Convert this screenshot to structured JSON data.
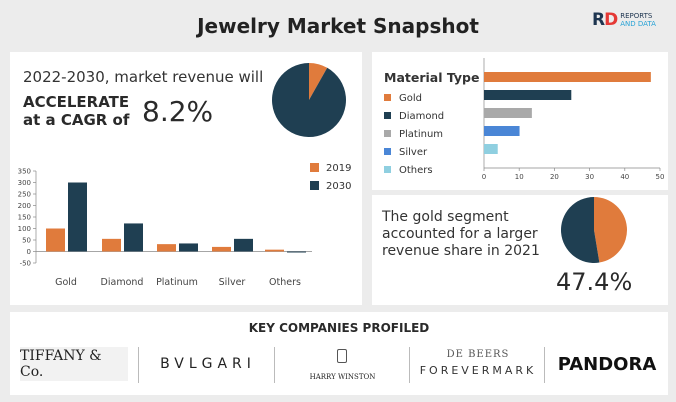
{
  "title": "Jewelry Market Snapshot",
  "logo": {
    "mark": "RD",
    "line1": "REPORTS",
    "line2": "AND DATA"
  },
  "summary": {
    "line1": "2022-2030, market revenue will",
    "line2": "ACCELERATE",
    "line3": "at a CAGR of",
    "cagr": "8.2%"
  },
  "gold_share": {
    "text": "The gold segment accounted for a larger revenue share in 2021",
    "value": "47.4%"
  },
  "companies": {
    "heading": "KEY COMPANIES PROFILED",
    "items": [
      "TIFFANY & Co.",
      "BVLGARI",
      "HARRY WINSTON",
      "DE BEERS",
      "FOREVERMARK",
      "PANDORA"
    ]
  },
  "colors": {
    "orange": "#e07b3c",
    "navy": "#1f3f52",
    "gray": "#a9a9a9",
    "blue": "#4a86d6",
    "lightblue": "#8fcfe0"
  },
  "chart_data": [
    {
      "type": "pie",
      "values": [
        8.2,
        91.8
      ],
      "colors": [
        "#e07b3c",
        "#1f3f52"
      ]
    },
    {
      "type": "bar",
      "categories": [
        "Gold",
        "Diamond",
        "Platinum",
        "Silver",
        "Others"
      ],
      "series": [
        {
          "name": "2019",
          "values": [
            100,
            55,
            32,
            20,
            8
          ]
        },
        {
          "name": "2030",
          "values": [
            300,
            122,
            35,
            55,
            -2
          ]
        }
      ],
      "ylim": [
        -50,
        350
      ],
      "yticks": [
        "350",
        "300",
        "250",
        "200",
        "150",
        "100",
        "50",
        "0",
        "-50"
      ],
      "legend": "top-right"
    },
    {
      "type": "bar",
      "orientation": "horizontal",
      "title": "Material Type",
      "categories": [
        "Gold",
        "Diamond",
        "Platinum",
        "Silver",
        "Others"
      ],
      "values": [
        47.4,
        24.8,
        13.6,
        10.1,
        3.9
      ],
      "colors": [
        "#e07b3c",
        "#1f3f52",
        "#a9a9a9",
        "#4a86d6",
        "#8fcfe0"
      ],
      "xlim": [
        0,
        50
      ],
      "xticks": [
        "0",
        "10",
        "20",
        "30",
        "40",
        "50"
      ],
      "legend": "left"
    },
    {
      "type": "pie",
      "values": [
        47.4,
        52.6
      ],
      "colors": [
        "#e07b3c",
        "#1f3f52"
      ]
    }
  ]
}
